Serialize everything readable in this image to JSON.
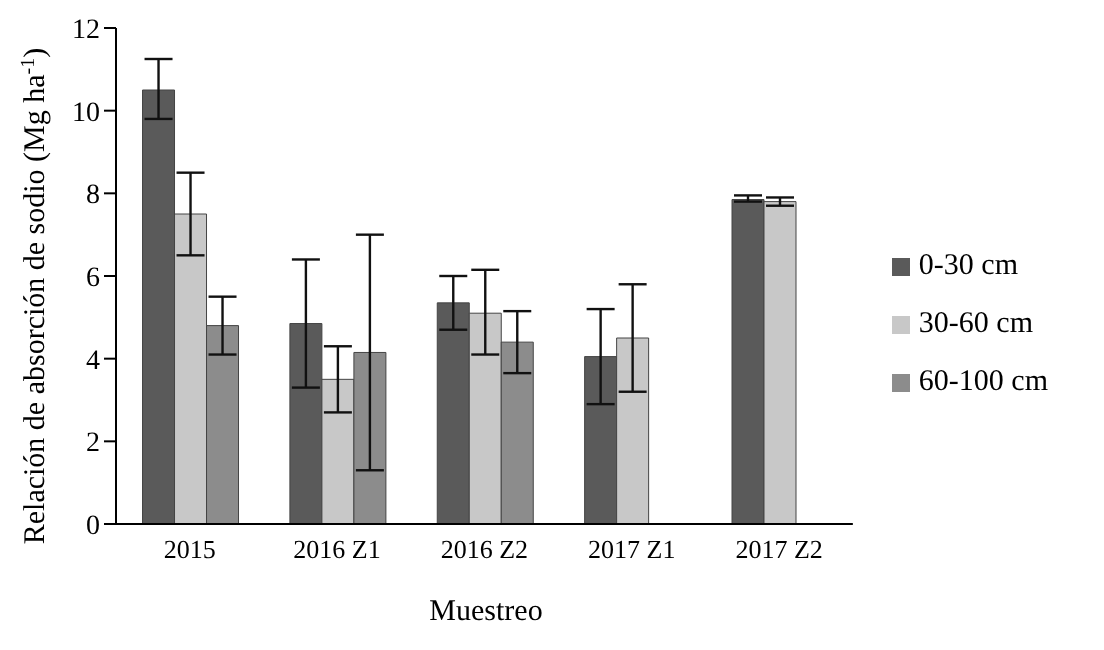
{
  "chart_data": {
    "type": "bar",
    "xlabel": "Muestreo",
    "ylabel": "Relación de absorción de sodio (Mg ha$^{-1}$)",
    "categories": [
      "2015",
      "2016 Z1",
      "2016 Z2",
      "2017 Z1",
      "2017 Z2"
    ],
    "series": [
      {
        "name": "0-30 cm",
        "color": "#5a5a5a",
        "values": [
          10.5,
          4.85,
          5.35,
          4.05,
          7.85
        ],
        "errors": [
          [
            9.8,
            11.25
          ],
          [
            3.3,
            6.4
          ],
          [
            4.7,
            6.0
          ],
          [
            2.9,
            5.2
          ],
          [
            7.8,
            7.95
          ]
        ]
      },
      {
        "name": "30-60 cm",
        "color": "#c8c8c8",
        "values": [
          7.5,
          3.5,
          5.1,
          4.5,
          7.8
        ],
        "errors": [
          [
            6.5,
            8.5
          ],
          [
            2.7,
            4.3
          ],
          [
            4.1,
            6.15
          ],
          [
            3.2,
            5.8
          ],
          [
            7.7,
            7.9
          ]
        ]
      },
      {
        "name": "60-100 cm",
        "color": "#8c8c8c",
        "values": [
          4.8,
          4.15,
          4.4,
          null,
          null
        ],
        "errors": [
          [
            4.1,
            5.5
          ],
          [
            1.3,
            7.0
          ],
          [
            3.65,
            5.15
          ],
          null,
          null
        ]
      }
    ],
    "ylim": [
      0,
      12
    ],
    "yticks": [
      0,
      2,
      4,
      6,
      8,
      10,
      12
    ],
    "grid": false,
    "legend": "right"
  }
}
